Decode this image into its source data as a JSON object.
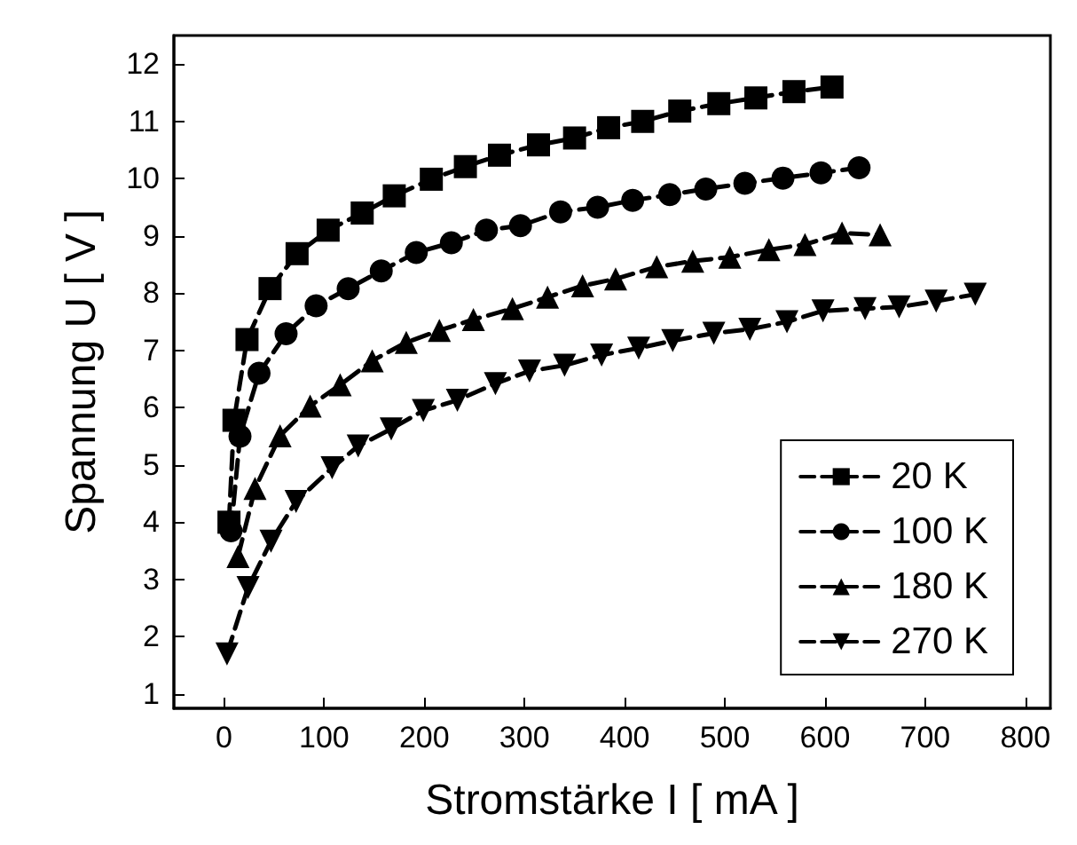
{
  "chart_data": {
    "type": "line",
    "xlabel": "Stromstärke I [ mA ]",
    "ylabel": "Spannung U [ V ]",
    "xlim": [
      -50,
      825
    ],
    "xticks": [
      0,
      100,
      200,
      300,
      400,
      500,
      600,
      700,
      800
    ],
    "ylim": [
      0.75,
      12.5
    ],
    "yticks": [
      1,
      2,
      3,
      4,
      5,
      6,
      7,
      8,
      9,
      10,
      11,
      12
    ],
    "grid": false,
    "legend": "bottom right",
    "line_style": "dashed",
    "series": [
      {
        "name": "20 K",
        "color": "#000000",
        "marker": "square",
        "x": [
          5,
          10,
          23,
          46,
          73,
          104,
          138,
          170,
          207,
          241,
          275,
          314,
          350,
          384,
          418,
          455,
          494,
          531,
          569,
          607
        ],
        "values": [
          4.0,
          5.78,
          7.19,
          8.08,
          8.69,
          9.1,
          9.4,
          9.7,
          9.99,
          10.21,
          10.41,
          10.59,
          10.71,
          10.89,
          11.0,
          11.18,
          11.31,
          11.41,
          11.52,
          11.6
        ]
      },
      {
        "name": "100 K",
        "color": "#000000",
        "marker": "circle",
        "x": [
          7,
          16,
          35,
          62,
          92,
          124,
          157,
          192,
          227,
          262,
          296,
          336,
          373,
          408,
          445,
          481,
          520,
          558,
          596,
          634
        ],
        "values": [
          3.85,
          5.5,
          6.6,
          7.29,
          7.78,
          8.08,
          8.39,
          8.71,
          8.88,
          9.1,
          9.18,
          9.42,
          9.5,
          9.62,
          9.72,
          9.82,
          9.92,
          10.01,
          10.1,
          10.19
        ]
      },
      {
        "name": "180 K",
        "color": "#000000",
        "marker": "triangle",
        "x": [
          14,
          31,
          56,
          86,
          116,
          148,
          182,
          215,
          249,
          288,
          323,
          358,
          391,
          432,
          468,
          505,
          544,
          580,
          617,
          655
        ],
        "values": [
          3.4,
          4.59,
          5.51,
          6.03,
          6.4,
          6.82,
          7.14,
          7.35,
          7.54,
          7.73,
          7.93,
          8.13,
          8.25,
          8.46,
          8.56,
          8.63,
          8.76,
          8.85,
          9.05,
          9.02
        ]
      },
      {
        "name": "270 K",
        "color": "#000000",
        "marker": "triangle-down",
        "x": [
          3,
          24,
          47,
          72,
          108,
          134,
          167,
          199,
          233,
          271,
          305,
          340,
          377,
          414,
          448,
          489,
          525,
          562,
          598,
          640,
          674,
          711,
          750
        ],
        "values": [
          1.7,
          2.86,
          3.67,
          4.36,
          4.95,
          5.33,
          5.63,
          5.95,
          6.13,
          6.42,
          6.64,
          6.74,
          6.92,
          7.04,
          7.17,
          7.3,
          7.37,
          7.5,
          7.69,
          7.73,
          7.76,
          7.86,
          7.98
        ]
      }
    ]
  }
}
